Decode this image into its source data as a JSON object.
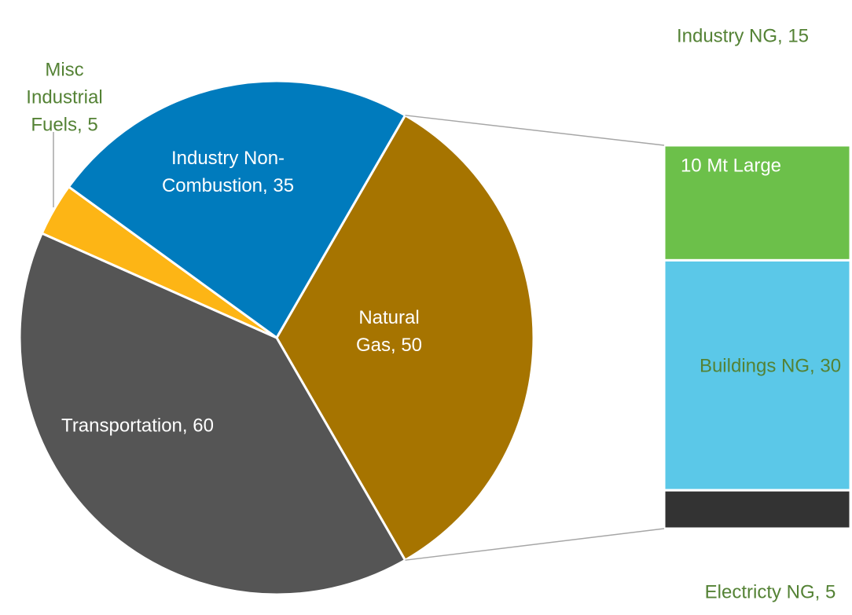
{
  "chart_data": {
    "type": "pie",
    "labels": [
      "Natural Gas, 50",
      "Transportation, 60",
      "Misc Industrial Fuels, 5",
      "Industry Non-Combustion, 35"
    ],
    "values": [
      50,
      60,
      5,
      35
    ],
    "colors": [
      "#a67400",
      "#555555",
      "#fdb515",
      "#007bbd"
    ],
    "bar": {
      "labels": [
        "Industry NG, 15",
        "Buildings NG, 30",
        "Electricty NG, 5"
      ],
      "values": [
        15,
        30,
        5
      ],
      "colors": [
        "#6cc04a",
        "#5bc8e8",
        "#333333"
      ],
      "annotation": "10 Mt Large"
    }
  }
}
